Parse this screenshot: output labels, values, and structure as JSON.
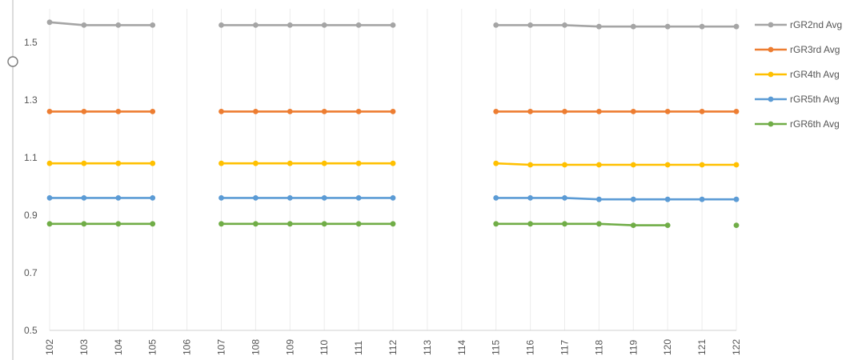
{
  "chart_data": {
    "type": "line",
    "title": "",
    "xlabel": "",
    "ylabel": "",
    "x": [
      "102",
      "103",
      "104",
      "105",
      "106",
      "107",
      "108",
      "109",
      "110",
      "111",
      "112",
      "113",
      "114",
      "115",
      "116",
      "117",
      "118",
      "119",
      "120",
      "121",
      "122"
    ],
    "ylim": [
      0.5,
      1.6
    ],
    "yticks": [
      0.5,
      0.7,
      0.9,
      1.1,
      1.3,
      1.5
    ],
    "grid": {
      "vertical": true,
      "horizontal": false
    },
    "legend_position": "right",
    "series": [
      {
        "name": "rGR2nd Avg",
        "color": "#a5a5a5",
        "values": [
          1.57,
          1.56,
          1.56,
          1.56,
          null,
          1.56,
          1.56,
          1.56,
          1.56,
          1.56,
          1.56,
          null,
          null,
          1.56,
          1.56,
          1.56,
          1.555,
          1.555,
          1.555,
          1.555,
          1.555
        ]
      },
      {
        "name": "rGR3rd Avg",
        "color": "#ed7d31",
        "values": [
          1.26,
          1.26,
          1.26,
          1.26,
          null,
          1.26,
          1.26,
          1.26,
          1.26,
          1.26,
          1.26,
          null,
          null,
          1.26,
          1.26,
          1.26,
          1.26,
          1.26,
          1.26,
          1.26,
          1.26
        ]
      },
      {
        "name": "rGR4th Avg",
        "color": "#ffc000",
        "values": [
          1.08,
          1.08,
          1.08,
          1.08,
          null,
          1.08,
          1.08,
          1.08,
          1.08,
          1.08,
          1.08,
          null,
          null,
          1.08,
          1.075,
          1.075,
          1.075,
          1.075,
          1.075,
          1.075,
          1.075
        ]
      },
      {
        "name": "rGR5th Avg",
        "color": "#5b9bd5",
        "values": [
          0.96,
          0.96,
          0.96,
          0.96,
          null,
          0.96,
          0.96,
          0.96,
          0.96,
          0.96,
          0.96,
          null,
          null,
          0.96,
          0.96,
          0.96,
          0.955,
          0.955,
          0.955,
          0.955,
          0.955
        ]
      },
      {
        "name": "rGR6th Avg",
        "color": "#70ad47",
        "values": [
          0.87,
          0.87,
          0.87,
          0.87,
          null,
          0.87,
          0.87,
          0.87,
          0.87,
          0.87,
          0.87,
          null,
          null,
          0.87,
          0.87,
          0.87,
          0.87,
          0.865,
          0.865,
          null,
          0.865
        ]
      }
    ]
  }
}
